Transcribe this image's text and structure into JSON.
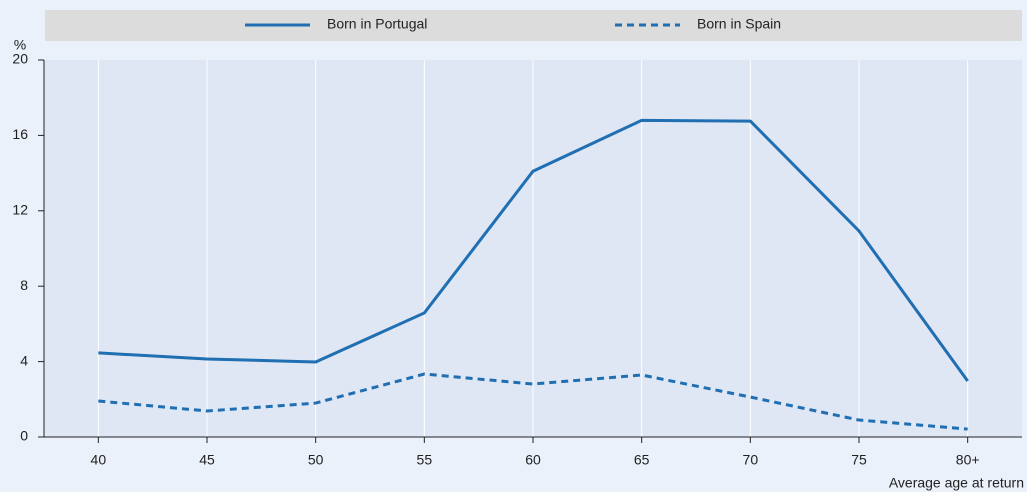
{
  "chart_data": {
    "type": "line",
    "y_unit": "%",
    "x_label": "Average age at return",
    "categories": [
      "40",
      "45",
      "50",
      "55",
      "60",
      "65",
      "70",
      "75",
      "80+"
    ],
    "series": [
      {
        "name": "Born in Portugal",
        "color": "#1f6fb2",
        "dash": "solid",
        "values": [
          4.46,
          4.14,
          3.98,
          6.58,
          14.1,
          16.8,
          16.76,
          10.93,
          2.97
        ]
      },
      {
        "name": "Born in Spain",
        "color": "#1f6fb2",
        "dash": "dashed",
        "values": [
          1.91,
          1.38,
          1.8,
          3.34,
          2.81,
          3.29,
          2.12,
          0.9,
          0.42
        ]
      }
    ],
    "ylim": [
      0,
      20
    ],
    "yticks": [
      0,
      4,
      8,
      12,
      16,
      20
    ],
    "grid": true
  }
}
